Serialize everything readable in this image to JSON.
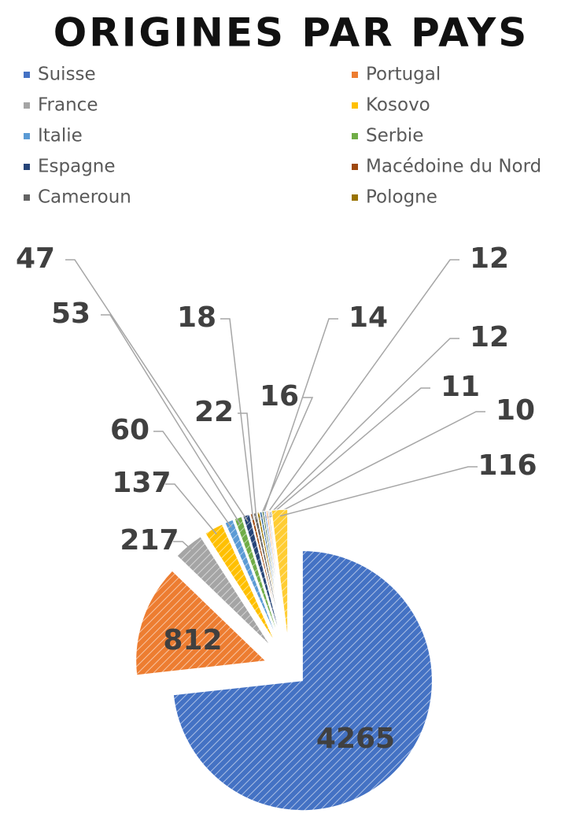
{
  "chart_data": {
    "type": "pie",
    "title": "ORIGINES PAR PAYS",
    "categories": [
      "Suisse",
      "Portugal",
      "France",
      "Kosovo",
      "Italie",
      "Serbie",
      "Espagne",
      "Macédoine du Nord",
      "Cameroun",
      "Pologne",
      null,
      null,
      null,
      null,
      null,
      null
    ],
    "values": [
      4265,
      812,
      217,
      137,
      60,
      53,
      47,
      18,
      22,
      16,
      14,
      12,
      12,
      11,
      10,
      116
    ],
    "colors": [
      "#4472c4",
      "#ed7d31",
      "#a5a5a5",
      "#ffc000",
      "#5b9bd5",
      "#70ad47",
      "#264478",
      "#9e480e",
      "#636363",
      "#997300",
      "#255e91",
      "#43682b",
      "#698ed0",
      "#f1975a",
      "#b7b7b7",
      "#ffcd33"
    ],
    "legend": "top"
  }
}
